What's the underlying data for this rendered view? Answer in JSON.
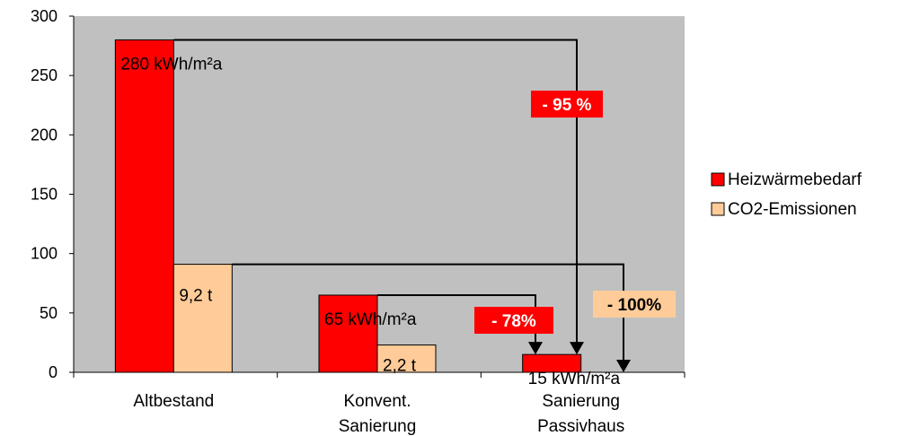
{
  "colors": {
    "plot_bg": "#c0c0c0",
    "heizwaerme": "#ff0000",
    "co2": "#ffcc99",
    "ann_red_bg": "#ff0000",
    "ann_red_text": "#ffffff",
    "ann_peach_bg": "#ffcc99",
    "ann_peach_text": "#000000",
    "line": "#000000"
  },
  "chart_data": {
    "type": "bar",
    "title": "",
    "xlabel": "",
    "ylabel": "",
    "ylim": [
      0,
      300
    ],
    "yticks": [
      "0",
      "50",
      "100",
      "150",
      "200",
      "250",
      "300"
    ],
    "categories": [
      [
        "Altbestand"
      ],
      [
        "Konvent.",
        "Sanierung"
      ],
      [
        "Sanierung",
        "Passivhaus"
      ]
    ],
    "series": [
      {
        "name": "Heizwärmebedarf",
        "values": [
          280,
          65,
          15
        ],
        "labels": [
          "280 kWh/m²a",
          "65 kWh/m²a",
          "15 kWh/m²a"
        ]
      },
      {
        "name": "CO2-Emissionen",
        "values": [
          91,
          23,
          0
        ],
        "labels": [
          "9,2 t",
          "2,2 t",
          ""
        ]
      }
    ],
    "legend": "right",
    "grid": false,
    "annotations": [
      {
        "text": "- 95 %",
        "style": "red"
      },
      {
        "text": "- 78%",
        "style": "red"
      },
      {
        "text": "- 100%",
        "style": "peach"
      }
    ]
  }
}
